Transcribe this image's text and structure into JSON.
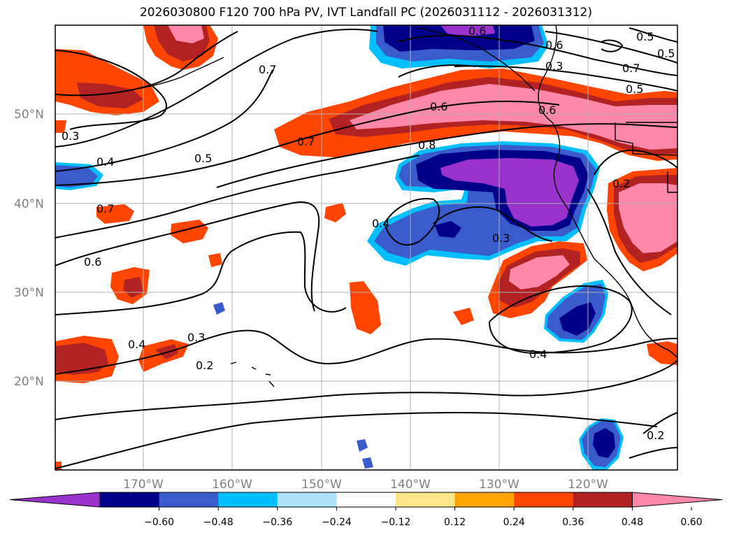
{
  "title": "2026030800 F120 700 hPa PV, IVT Landfall PC (2026031112 - 2026031312)",
  "map": {
    "lat_labels": [
      "50°N",
      "40°N",
      "30°N",
      "20°N"
    ],
    "lon_labels": [
      "170°W",
      "160°W",
      "150°W",
      "140°W",
      "130°W",
      "120°W"
    ],
    "contour_labels": [
      "0.6",
      "0.6",
      "0.5",
      "0.6",
      "0.7",
      "0.7",
      "0.5",
      "0.3",
      "0.3",
      "0.4",
      "0.5",
      "0.7",
      "0.6",
      "0.8",
      "0.5",
      "0.7",
      "0.4",
      "0.6",
      "0.3",
      "0.2",
      "0.4",
      "0.3",
      "0.2",
      "0.4",
      "0.2"
    ]
  },
  "colorbar": {
    "ticks": [
      "−0.60",
      "−0.48",
      "−0.36",
      "−0.24",
      "−0.12",
      "0.12",
      "0.24",
      "0.36",
      "0.48",
      "0.60"
    ],
    "colors": [
      "#9932cc",
      "#00008b",
      "#3a5bcc",
      "#00bfff",
      "#aee2fa",
      "#ffffff",
      "#ffe68a",
      "#ffa500",
      "#ff4500",
      "#b22222",
      "#ff88aa"
    ]
  }
}
